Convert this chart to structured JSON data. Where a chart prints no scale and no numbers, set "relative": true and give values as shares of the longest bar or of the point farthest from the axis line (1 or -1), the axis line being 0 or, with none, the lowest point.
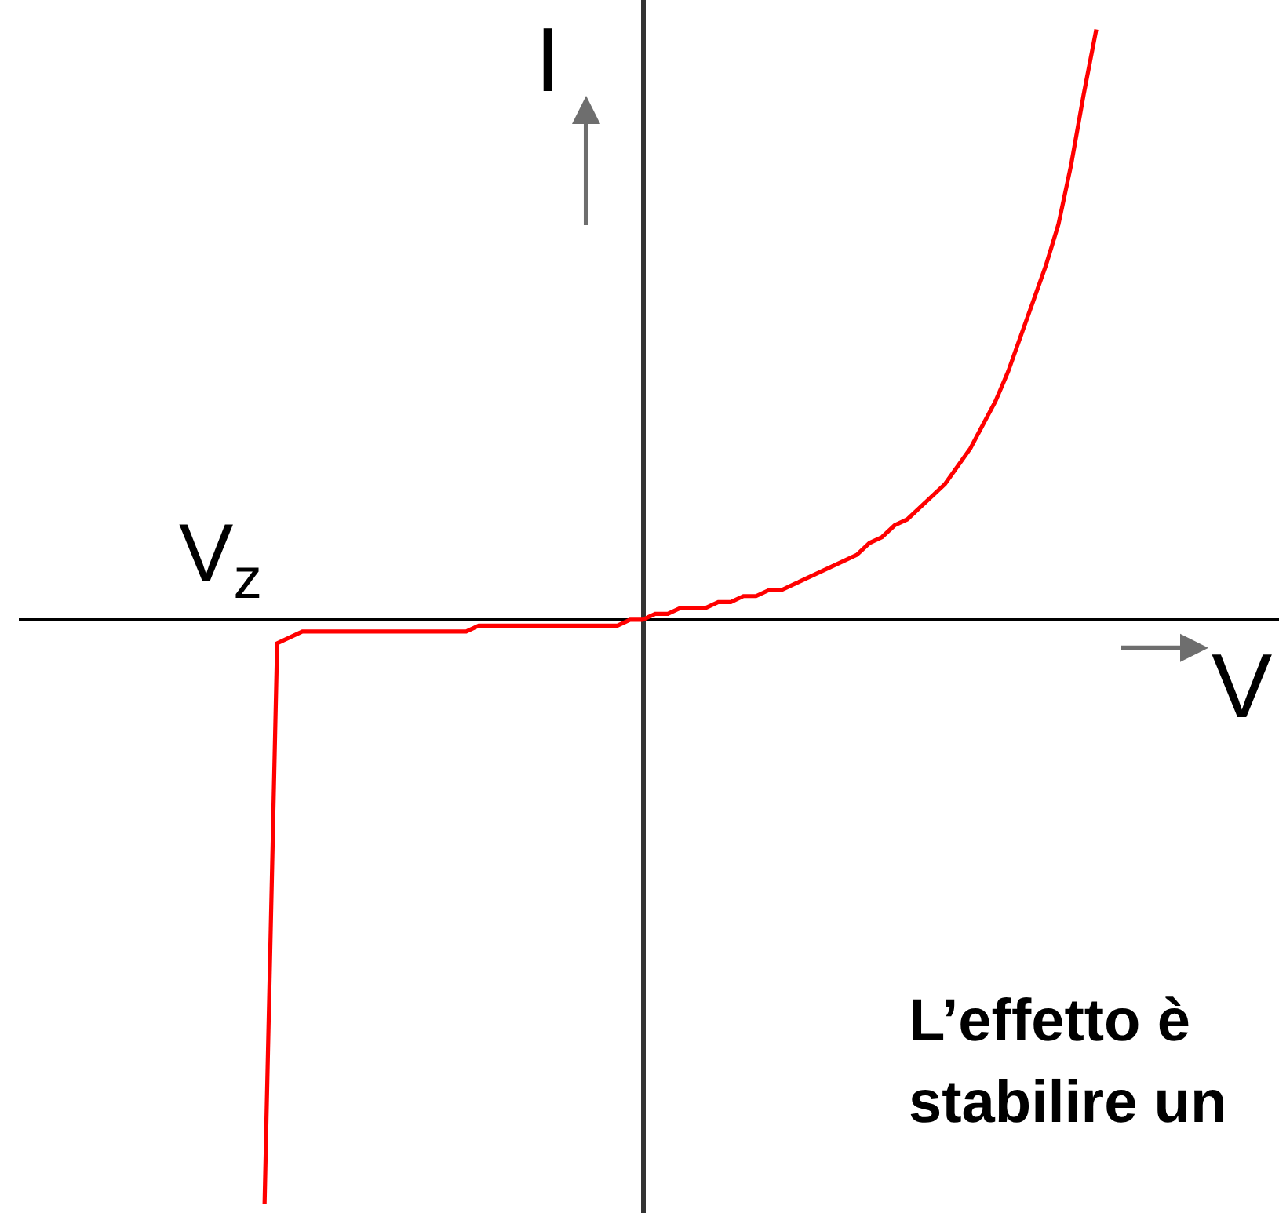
{
  "chart_data": {
    "type": "line",
    "relative": true,
    "tick_labels": false,
    "xlabel": "V",
    "ylabel": "I",
    "annotations": [
      "V$_{z}$",
      "L’effetto è",
      "stabilire un"
    ],
    "categories": [
      null,
      null,
      null,
      null,
      null,
      null,
      null,
      null,
      null,
      null,
      null,
      null,
      null,
      null,
      null,
      null,
      null,
      null,
      null,
      null,
      null,
      null,
      null,
      null,
      null,
      null,
      null,
      null,
      null,
      null,
      null,
      null,
      null,
      null,
      null,
      null,
      null,
      null,
      null,
      null,
      null,
      null,
      null,
      null,
      null,
      null,
      null,
      null,
      null,
      null,
      null,
      null,
      null,
      null,
      null,
      null,
      null,
      null,
      null,
      null,
      null,
      null,
      null,
      null,
      null,
      null,
      null,
      null,
      null,
      null,
      null,
      null,
      null,
      null,
      null,
      null,
      null,
      null,
      null,
      null,
      null,
      null,
      null,
      null,
      null,
      null,
      null,
      null,
      null,
      null,
      null,
      null,
      null,
      null,
      null,
      null,
      null,
      null,
      null,
      null
    ],
    "series": [
      {
        "color": "#ff0000",
        "values": [
          null,
          null,
          null,
          null,
          null,
          null,
          null,
          null,
          null,
          null,
          null,
          null,
          null,
          null,
          null,
          null,
          null,
          null,
          null,
          -0.99,
          -0.04,
          -0.03,
          -0.02,
          -0.02,
          -0.02,
          -0.02,
          -0.02,
          -0.02,
          -0.02,
          -0.02,
          -0.02,
          -0.02,
          -0.02,
          -0.02,
          -0.02,
          -0.02,
          -0.01,
          -0.01,
          -0.01,
          -0.01,
          -0.01,
          -0.01,
          -0.01,
          -0.01,
          -0.01,
          -0.01,
          -0.01,
          -0.01,
          0,
          0,
          0.01,
          0.01,
          0.02,
          0.02,
          0.02,
          0.03,
          0.03,
          0.04,
          0.04,
          0.05,
          0.05,
          0.06,
          0.07,
          0.08,
          0.09,
          0.1,
          0.11,
          0.13,
          0.14,
          0.16,
          0.17,
          0.19,
          0.21,
          0.23,
          0.26,
          0.29,
          0.33,
          0.37,
          0.42,
          0.48,
          0.54,
          0.6,
          0.67,
          0.77,
          0.89,
          1.0,
          null,
          null,
          null,
          null,
          null,
          null,
          null,
          null,
          null,
          null,
          null,
          null,
          null,
          null
        ]
      }
    ]
  }
}
